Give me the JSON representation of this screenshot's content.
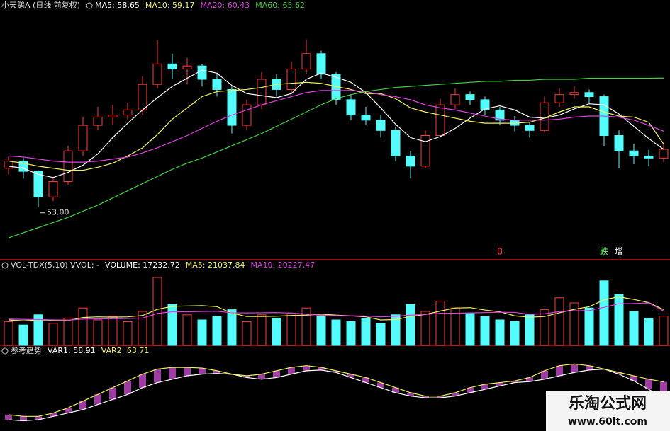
{
  "chart_data": [
    {
      "type": "candlestick",
      "title": "小天鹅A (日线 前复权)",
      "open": [
        56.8,
        57.5,
        56.5,
        54.0,
        55.5,
        58.5,
        61.0,
        61.8,
        62.0,
        62.5,
        65.0,
        67.0,
        66.5,
        66.8,
        65.5,
        64.5,
        61.0,
        63.0,
        65.5,
        64.5,
        66.5,
        68.0,
        66.0,
        63.5,
        62.0,
        61.5,
        60.5,
        58.0,
        57.0,
        60.0,
        63.0,
        64.0,
        63.5,
        62.5,
        61.5,
        61.0,
        60.5,
        63.2,
        64.0,
        64.2,
        63.8,
        60.0,
        58.5,
        58.0,
        57.8
      ],
      "high": [
        58.0,
        57.8,
        56.6,
        56.0,
        59.0,
        61.8,
        62.8,
        63.0,
        63.2,
        65.8,
        69.3,
        68.0,
        67.6,
        67.0,
        66.0,
        64.8,
        63.5,
        66.2,
        66.0,
        67.2,
        69.4,
        68.3,
        66.2,
        64.0,
        62.8,
        62.0,
        60.8,
        58.5,
        60.5,
        63.6,
        64.6,
        64.3,
        63.8,
        62.8,
        61.9,
        61.3,
        63.8,
        64.6,
        64.8,
        64.5,
        64.0,
        60.5,
        59.2,
        58.6,
        59.3
      ],
      "low": [
        56.2,
        55.8,
        53.0,
        53.6,
        55.2,
        58.0,
        60.5,
        61.0,
        61.5,
        62.0,
        64.6,
        65.5,
        65.0,
        64.8,
        63.8,
        60.2,
        60.5,
        62.6,
        63.8,
        64.0,
        66.0,
        65.5,
        63.0,
        61.5,
        61.0,
        59.8,
        57.5,
        55.8,
        56.8,
        59.8,
        62.6,
        63.0,
        62.0,
        61.0,
        60.4,
        59.8,
        60.3,
        62.8,
        63.6,
        63.2,
        59.0,
        56.8,
        57.2,
        57.0,
        57.4
      ],
      "close": [
        57.5,
        56.5,
        54.0,
        55.5,
        58.5,
        61.0,
        61.8,
        62.0,
        62.5,
        65.0,
        67.0,
        66.5,
        66.8,
        65.5,
        64.5,
        61.0,
        63.0,
        65.5,
        64.5,
        66.5,
        68.0,
        66.0,
        63.5,
        62.0,
        61.5,
        60.5,
        58.0,
        57.0,
        60.0,
        63.0,
        64.0,
        63.5,
        62.5,
        61.5,
        61.0,
        60.5,
        63.2,
        64.0,
        64.2,
        63.8,
        60.0,
        58.5,
        58.0,
        57.8,
        58.65
      ],
      "up_color": "#ff3c3c",
      "down_color": "#54fcfc",
      "ylim": [
        48,
        72
      ],
      "low_labels": [
        null,
        null,
        "53.00",
        null,
        null,
        null,
        null,
        null,
        null,
        null,
        null,
        null,
        null,
        null,
        null,
        null,
        null,
        null,
        null,
        null,
        null,
        null,
        null,
        null,
        null,
        null,
        null,
        null,
        null,
        null,
        null,
        null,
        null,
        null,
        null,
        null,
        null,
        null,
        null,
        null,
        null,
        null,
        null,
        null,
        null
      ],
      "signals": [
        null,
        null,
        null,
        null,
        null,
        null,
        null,
        null,
        null,
        null,
        null,
        null,
        null,
        null,
        null,
        null,
        null,
        null,
        null,
        null,
        null,
        null,
        null,
        null,
        null,
        null,
        null,
        null,
        null,
        null,
        null,
        null,
        null,
        {
          "text": "B",
          "color": "#ff3c3c"
        },
        null,
        null,
        null,
        null,
        null,
        null,
        {
          "text": "跌",
          "color": "#60ff60"
        },
        {
          "text": "增",
          "color": "#ffffff"
        },
        null,
        null,
        null
      ],
      "series": [
        {
          "name": "MA5: 58.65",
          "color": "#ffffff",
          "values": [
            57.0,
            56.8,
            56.2,
            55.9,
            56.4,
            57.1,
            58.2,
            59.8,
            61.2,
            62.5,
            63.7,
            64.8,
            65.6,
            66.4,
            66.1,
            64.9,
            64.1,
            63.9,
            63.7,
            64.1,
            65.5,
            66.1,
            65.7,
            65.2,
            64.2,
            62.7,
            61.1,
            59.8,
            59.4,
            59.9,
            60.7,
            61.7,
            62.6,
            62.9,
            62.5,
            61.8,
            61.7,
            62.0,
            62.6,
            63.1,
            63.0,
            62.1,
            60.9,
            59.7,
            58.65
          ]
        },
        {
          "name": "MA10: 59.17",
          "color": "#f0f060",
          "values": [
            57.5,
            57.3,
            57.0,
            56.8,
            56.6,
            56.6,
            56.9,
            57.3,
            58.0,
            58.8,
            60.1,
            61.6,
            62.7,
            63.8,
            64.3,
            64.4,
            64.5,
            64.7,
            65.0,
            65.1,
            65.2,
            65.1,
            64.8,
            64.5,
            64.1,
            64.1,
            63.6,
            62.7,
            62.3,
            62.0,
            61.7,
            61.4,
            61.2,
            61.2,
            61.2,
            61.3,
            61.7,
            62.3,
            62.8,
            62.8,
            62.3,
            61.9,
            61.8,
            61.3,
            59.17
          ]
        },
        {
          "name": "MA20: 60.43",
          "color": "#e040e0",
          "values": [
            58.0,
            57.9,
            57.7,
            57.5,
            57.4,
            57.4,
            57.5,
            57.7,
            57.9,
            58.3,
            58.8,
            59.4,
            60.0,
            60.7,
            61.4,
            62.0,
            62.5,
            63.0,
            63.4,
            63.8,
            64.2,
            64.4,
            64.4,
            64.4,
            64.3,
            64.0,
            63.8,
            63.5,
            63.0,
            62.7,
            62.5,
            62.2,
            61.9,
            61.6,
            61.5,
            61.5,
            61.5,
            61.6,
            61.8,
            61.9,
            61.9,
            61.8,
            61.5,
            61.0,
            60.43
          ]
        },
        {
          "name": "MA60: 65.62",
          "color": "#40d040",
          "values": [
            50.0,
            50.5,
            51.0,
            51.5,
            52.0,
            52.6,
            53.2,
            53.9,
            54.6,
            55.3,
            56.0,
            56.7,
            57.3,
            57.8,
            58.4,
            59.0,
            59.6,
            60.2,
            60.9,
            61.6,
            62.3,
            63.0,
            63.6,
            64.0,
            64.3,
            64.5,
            64.7,
            64.8,
            64.9,
            65.0,
            65.1,
            65.2,
            65.3,
            65.3,
            65.4,
            65.4,
            65.5,
            65.5,
            65.5,
            65.6,
            65.6,
            65.6,
            65.6,
            65.6,
            65.62
          ]
        }
      ]
    },
    {
      "type": "bar",
      "title": "VOL-TDX(5,10) VVOL: -",
      "value_name": "VOLUME: 17232.72",
      "value_color": "#ffffff",
      "values": [
        14000,
        12000,
        18000,
        13000,
        16000,
        22000,
        15000,
        17000,
        14000,
        20000,
        40000,
        24000,
        18000,
        15000,
        17000,
        21000,
        14000,
        18000,
        16000,
        19000,
        22000,
        17000,
        15000,
        14000,
        16000,
        13000,
        18000,
        24000,
        20000,
        26000,
        22000,
        19000,
        17000,
        15000,
        14000,
        18000,
        21000,
        28000,
        25000,
        22000,
        38000,
        30000,
        20000,
        16000,
        17232.72
      ],
      "ylim": [
        0,
        45000
      ],
      "series": [
        {
          "name": "MA5: 21037.84",
          "color": "#f0f060",
          "values": [
            15000,
            14500,
            15000,
            14800,
            14600,
            16400,
            16800,
            16600,
            16800,
            17600,
            21200,
            23000,
            23200,
            23400,
            22800,
            19000,
            17000,
            17000,
            17200,
            17600,
            17800,
            18400,
            17800,
            17400,
            16800,
            15000,
            15200,
            17000,
            18200,
            20200,
            22000,
            22200,
            20800,
            19800,
            17400,
            16600,
            17000,
            19200,
            21200,
            22800,
            26800,
            28600,
            27000,
            25200,
            21037.84
          ]
        },
        {
          "name": "MA10: 20227.47",
          "color": "#e040e0",
          "values": [
            15500,
            15300,
            15200,
            15000,
            14900,
            15500,
            15600,
            15700,
            15800,
            16100,
            18800,
            19800,
            19800,
            20000,
            20100,
            19200,
            19100,
            19200,
            19300,
            19000,
            18400,
            17700,
            17500,
            17400,
            17300,
            16800,
            17200,
            17800,
            18200,
            18900,
            18900,
            19100,
            19300,
            19500,
            19400,
            18300,
            18600,
            19900,
            20400,
            20500,
            22400,
            24500,
            24600,
            25000,
            20227.47
          ]
        }
      ]
    },
    {
      "type": "band",
      "title": "参考趋势",
      "ylim": [
        50,
        72
      ],
      "band_color": "#b848c0",
      "series": [
        {
          "name": "VAR1: 58.91",
          "color": "#ffffff",
          "values": [
            52.5,
            52.2,
            52.5,
            53.5,
            54.5,
            55.5,
            57,
            58.5,
            60,
            62,
            63.5,
            64.5,
            65.5,
            66,
            66.2,
            66,
            65,
            64.5,
            65,
            66,
            67,
            67.2,
            66.5,
            65,
            63.5,
            62,
            60.5,
            59.5,
            59,
            59,
            59.5,
            60.5,
            61.5,
            62.5,
            63.5,
            63.8,
            64.5,
            65.5,
            66.5,
            67.2,
            67.5,
            66,
            64,
            61.5,
            58.91
          ]
        },
        {
          "name": "VAR2: 63.71",
          "color": "#f0f060",
          "values": [
            54,
            53.5,
            53.5,
            54.5,
            56,
            58,
            60,
            62,
            64,
            66,
            67.5,
            68,
            68,
            67.8,
            67,
            66,
            65.5,
            66,
            67,
            68,
            68.5,
            68,
            67,
            66,
            65,
            63.5,
            62,
            60.5,
            59.5,
            59.5,
            60.5,
            62,
            63,
            63.5,
            64,
            65,
            67,
            68.5,
            69,
            68.5,
            67.5,
            66.5,
            65.5,
            64.5,
            63.71
          ]
        }
      ]
    }
  ],
  "watermark": {
    "title": "乐淘公式网",
    "url": "www.60lt.com"
  }
}
